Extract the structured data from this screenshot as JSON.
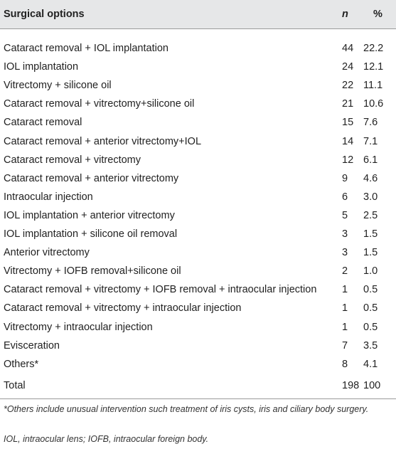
{
  "table": {
    "header": [
      "Surgical options",
      "n",
      "%"
    ],
    "rows": [
      [
        "Cataract removal + IOL implantation",
        "44",
        "22.2"
      ],
      [
        "IOL implantation",
        "24",
        "12.1"
      ],
      [
        "Vitrectomy + silicone oil",
        "22",
        "11.1"
      ],
      [
        "Cataract removal + vitrectomy+silicone oil",
        "21",
        "10.6"
      ],
      [
        "Cataract removal",
        "15",
        "7.6"
      ],
      [
        "Cataract removal + anterior vitrectomy+IOL",
        "14",
        "7.1"
      ],
      [
        "Cataract removal + vitrectomy",
        "12",
        "6.1"
      ],
      [
        "Cataract removal + anterior vitrectomy",
        "9",
        "4.6"
      ],
      [
        "Intraocular injection",
        "6",
        "3.0"
      ],
      [
        "IOL implantation + anterior vitrectomy",
        "5",
        "2.5"
      ],
      [
        "IOL implantation + silicone oil removal",
        "3",
        "1.5"
      ],
      [
        "Anterior vitrectomy",
        "3",
        "1.5"
      ],
      [
        "Vitrectomy + IOFB removal+silicone oil",
        "2",
        "1.0"
      ],
      [
        "Cataract removal + vitrectomy + IOFB removal + intraocular injection",
        "1",
        "0.5"
      ],
      [
        "Cataract removal + vitrectomy + intraocular injection",
        "1",
        "0.5"
      ],
      [
        "Vitrectomy + intraocular injection",
        "1",
        "0.5"
      ],
      [
        "Evisceration",
        "7",
        "3.5"
      ],
      [
        "Others*",
        "8",
        "4.1"
      ],
      [
        "Total",
        "198",
        "100"
      ]
    ],
    "notes": [
      "*Others include unusual intervention such treatment of iris cysts, iris and ciliary body surgery.",
      "IOL, intraocular lens; IOFB, intraocular foreign body."
    ]
  }
}
